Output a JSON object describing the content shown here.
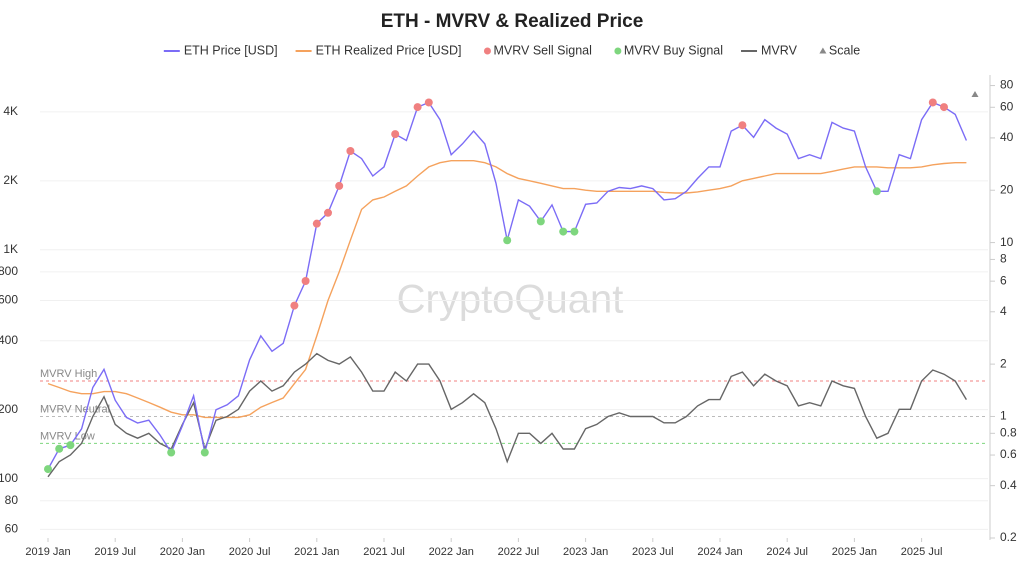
{
  "chart_data": {
    "type": "line",
    "title": "ETH - MVRV & Realized Price",
    "watermark": "CryptoQuant",
    "x": [
      "2019-01",
      "2019-02",
      "2019-03",
      "2019-04",
      "2019-05",
      "2019-06",
      "2019-07",
      "2019-08",
      "2019-09",
      "2019-10",
      "2019-11",
      "2019-12",
      "2020-01",
      "2020-02",
      "2020-03",
      "2020-04",
      "2020-05",
      "2020-06",
      "2020-07",
      "2020-08",
      "2020-09",
      "2020-10",
      "2020-11",
      "2020-12",
      "2021-01",
      "2021-02",
      "2021-03",
      "2021-04",
      "2021-05",
      "2021-06",
      "2021-07",
      "2021-08",
      "2021-09",
      "2021-10",
      "2021-11",
      "2021-12",
      "2022-01",
      "2022-02",
      "2022-03",
      "2022-04",
      "2022-05",
      "2022-06",
      "2022-07",
      "2022-08",
      "2022-09",
      "2022-10",
      "2022-11",
      "2022-12",
      "2023-01",
      "2023-02",
      "2023-03",
      "2023-04",
      "2023-05",
      "2023-06",
      "2023-07",
      "2023-08",
      "2023-09",
      "2023-10",
      "2023-11",
      "2023-12",
      "2024-01",
      "2024-02",
      "2024-03",
      "2024-04",
      "2024-05",
      "2024-06",
      "2024-07",
      "2024-08",
      "2024-09",
      "2024-10",
      "2024-11",
      "2024-12",
      "2025-01",
      "2025-02",
      "2025-03",
      "2025-04",
      "2025-05",
      "2025-06",
      "2025-07",
      "2025-08",
      "2025-09",
      "2025-10",
      "2025-11"
    ],
    "xticks": [
      {
        "value": "2019-01",
        "label": "2019 Jan"
      },
      {
        "value": "2019-07",
        "label": "2019 Jul"
      },
      {
        "value": "2020-01",
        "label": "2020 Jan"
      },
      {
        "value": "2020-07",
        "label": "2020 Jul"
      },
      {
        "value": "2021-01",
        "label": "2021 Jan"
      },
      {
        "value": "2021-07",
        "label": "2021 Jul"
      },
      {
        "value": "2022-01",
        "label": "2022 Jan"
      },
      {
        "value": "2022-07",
        "label": "2022 Jul"
      },
      {
        "value": "2023-01",
        "label": "2023 Jan"
      },
      {
        "value": "2023-07",
        "label": "2023 Jul"
      },
      {
        "value": "2024-01",
        "label": "2024 Jan"
      },
      {
        "value": "2024-07",
        "label": "2024 Jul"
      },
      {
        "value": "2025-01",
        "label": "2025 Jan"
      },
      {
        "value": "2025-07",
        "label": "2025 Jul"
      }
    ],
    "ylim": [
      55,
      5800
    ],
    "y_log": true,
    "yticks": [
      60,
      80,
      100,
      200,
      400,
      600,
      800,
      {
        "value": 1000,
        "label": "1K"
      },
      {
        "value": 2000,
        "label": "2K"
      },
      {
        "value": 4000,
        "label": "4K"
      }
    ],
    "y2lim": [
      0.2,
      92
    ],
    "y2_log": true,
    "y2ticks": [
      0.2,
      0.4,
      0.6,
      0.8,
      1,
      2,
      4,
      6,
      8,
      10,
      20,
      40,
      60,
      80
    ],
    "grid": true,
    "series": [
      {
        "name": "ETH Price [USD]",
        "color": "#7b6cf6",
        "style": "line",
        "values": [
          110,
          135,
          140,
          165,
          250,
          300,
          220,
          185,
          175,
          180,
          155,
          130,
          170,
          230,
          130,
          200,
          210,
          230,
          330,
          420,
          360,
          390,
          570,
          730,
          1300,
          1450,
          1900,
          2700,
          2500,
          2100,
          2300,
          3200,
          3000,
          4200,
          4400,
          3700,
          2600,
          2900,
          3300,
          2900,
          1950,
          1100,
          1650,
          1550,
          1330,
          1570,
          1200,
          1200,
          1580,
          1600,
          1800,
          1870,
          1850,
          1900,
          1850,
          1650,
          1670,
          1800,
          2050,
          2300,
          2300,
          3300,
          3500,
          3100,
          3700,
          3400,
          3200,
          2500,
          2600,
          2500,
          3600,
          3400,
          3300,
          2300,
          1800,
          1800,
          2600,
          2500,
          3700,
          4400,
          4200,
          3900,
          3000
        ]
      },
      {
        "name": "ETH Realized Price [USD]",
        "color": "#f5a25d",
        "style": "line",
        "values": [
          260,
          250,
          240,
          235,
          235,
          240,
          240,
          235,
          225,
          215,
          205,
          195,
          190,
          190,
          185,
          185,
          185,
          185,
          190,
          205,
          215,
          225,
          260,
          300,
          420,
          600,
          800,
          1100,
          1500,
          1650,
          1700,
          1800,
          1900,
          2100,
          2300,
          2400,
          2450,
          2450,
          2450,
          2400,
          2300,
          2150,
          2050,
          2000,
          1950,
          1900,
          1850,
          1850,
          1820,
          1800,
          1800,
          1800,
          1800,
          1800,
          1800,
          1780,
          1770,
          1770,
          1790,
          1820,
          1850,
          1900,
          2000,
          2050,
          2100,
          2150,
          2150,
          2150,
          2150,
          2150,
          2200,
          2250,
          2300,
          2300,
          2300,
          2280,
          2280,
          2280,
          2300,
          2350,
          2380,
          2400,
          2400
        ]
      },
      {
        "name": "MVRV Sell Signal",
        "color": "#f08080",
        "style": "dots",
        "values": [
          null,
          null,
          null,
          null,
          null,
          null,
          null,
          null,
          null,
          null,
          null,
          null,
          null,
          null,
          null,
          null,
          null,
          null,
          null,
          null,
          null,
          null,
          570,
          730,
          1300,
          1450,
          1900,
          2700,
          null,
          null,
          null,
          3200,
          null,
          4200,
          4400,
          null,
          null,
          null,
          null,
          null,
          null,
          null,
          null,
          null,
          null,
          null,
          null,
          null,
          null,
          null,
          null,
          null,
          null,
          null,
          null,
          null,
          null,
          null,
          null,
          null,
          null,
          null,
          3500,
          null,
          null,
          null,
          null,
          null,
          null,
          null,
          null,
          null,
          null,
          null,
          null,
          null,
          null,
          null,
          null,
          4400,
          4200,
          null,
          null
        ]
      },
      {
        "name": "MVRV Buy Signal",
        "color": "#7ed67e",
        "style": "dots",
        "values": [
          110,
          135,
          140,
          null,
          null,
          null,
          null,
          null,
          null,
          null,
          null,
          130,
          null,
          null,
          130,
          null,
          null,
          null,
          null,
          null,
          null,
          null,
          null,
          null,
          null,
          null,
          null,
          null,
          null,
          null,
          null,
          null,
          null,
          null,
          null,
          null,
          null,
          null,
          null,
          null,
          null,
          1100,
          null,
          null,
          1330,
          null,
          1200,
          1200,
          null,
          null,
          null,
          null,
          null,
          null,
          null,
          null,
          null,
          null,
          null,
          null,
          null,
          null,
          null,
          null,
          null,
          null,
          null,
          null,
          null,
          null,
          null,
          null,
          null,
          null,
          1800,
          null,
          null,
          null,
          null,
          null,
          null,
          null,
          null
        ]
      },
      {
        "name": "MVRV",
        "color": "#666666",
        "style": "line",
        "axis": "y2",
        "values": [
          0.45,
          0.55,
          0.6,
          0.7,
          1.0,
          1.3,
          0.9,
          0.8,
          0.75,
          0.8,
          0.7,
          0.65,
          0.9,
          1.2,
          0.65,
          0.95,
          1.0,
          1.1,
          1.4,
          1.6,
          1.4,
          1.5,
          1.8,
          2.0,
          2.3,
          2.1,
          2.0,
          2.2,
          1.8,
          1.4,
          1.4,
          1.8,
          1.6,
          2.0,
          2.0,
          1.6,
          1.1,
          1.2,
          1.35,
          1.2,
          0.85,
          0.55,
          0.8,
          0.8,
          0.7,
          0.8,
          0.65,
          0.65,
          0.85,
          0.9,
          1.0,
          1.05,
          1.0,
          1.0,
          1.0,
          0.92,
          0.92,
          1.0,
          1.15,
          1.25,
          1.25,
          1.7,
          1.8,
          1.5,
          1.75,
          1.6,
          1.5,
          1.15,
          1.2,
          1.15,
          1.6,
          1.5,
          1.45,
          1.0,
          0.75,
          0.8,
          1.1,
          1.1,
          1.6,
          1.85,
          1.75,
          1.6,
          1.25
        ]
      },
      {
        "name": "Scale",
        "color": "#888888",
        "style": "triangle"
      }
    ],
    "reference_lines": [
      {
        "label": "MVRV High",
        "value": 1.6,
        "color": "#f08080"
      },
      {
        "label": "MVRV Neutral",
        "value": 1,
        "color": "#bbbbbb"
      },
      {
        "label": "MVRV Low",
        "value": 0.7,
        "color": "#7ed67e"
      }
    ]
  }
}
